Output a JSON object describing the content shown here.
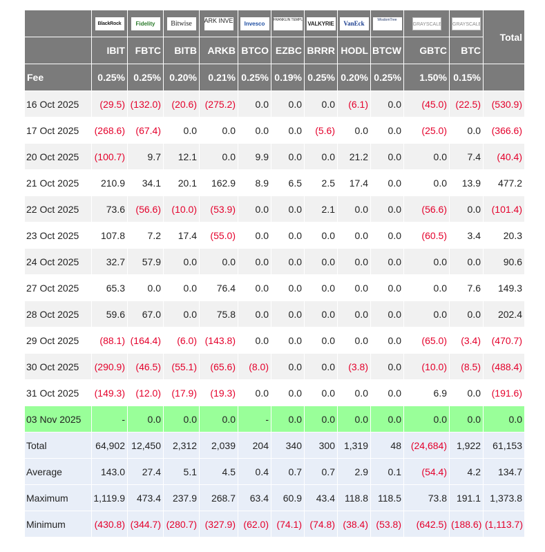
{
  "columns": [
    {
      "ticker": "IBIT",
      "fee": "0.25%",
      "logo_text": "BlackRock",
      "logo_icon": "blackrock-logo"
    },
    {
      "ticker": "FBTC",
      "fee": "0.25%",
      "logo_text": "Fidelity",
      "logo_icon": "fidelity-logo"
    },
    {
      "ticker": "BITB",
      "fee": "0.20%",
      "logo_text": "Bitwise",
      "logo_icon": "bitwise-logo"
    },
    {
      "ticker": "ARKB",
      "fee": "0.21%",
      "logo_text": "ARK INVEST",
      "logo_icon": "ark-logo"
    },
    {
      "ticker": "BTCO",
      "fee": "0.25%",
      "logo_text": "Invesco",
      "logo_icon": "invesco-logo"
    },
    {
      "ticker": "EZBC",
      "fee": "0.19%",
      "logo_text": "FRANKLIN TEMPLETON",
      "logo_icon": "franklin-templeton-logo"
    },
    {
      "ticker": "BRRR",
      "fee": "0.25%",
      "logo_text": "VALKYRIE",
      "logo_icon": "valkyrie-logo"
    },
    {
      "ticker": "HODL",
      "fee": "0.20%",
      "logo_text": "VanEck",
      "logo_icon": "vaneck-logo"
    },
    {
      "ticker": "BTCW",
      "fee": "0.25%",
      "logo_text": "WisdomTree",
      "logo_icon": "wisdomtree-logo"
    },
    {
      "ticker": "GBTC",
      "fee": "1.50%",
      "logo_text": "GRAYSCALE",
      "logo_icon": "grayscale-logo"
    },
    {
      "ticker": "BTC",
      "fee": "0.15%",
      "logo_text": "GRAYSCALE",
      "logo_icon": "grayscale-mini-logo"
    }
  ],
  "header": {
    "total_label": "Total",
    "fee_label": "Fee"
  },
  "rows": [
    {
      "date": "16 Oct 2025",
      "values": [
        "(29.5)",
        "(132.0)",
        "(20.6)",
        "(275.2)",
        "0.0",
        "0.0",
        "0.0",
        "(6.1)",
        "0.0",
        "(45.0)",
        "(22.5)"
      ],
      "total": "(530.9)"
    },
    {
      "date": "17 Oct 2025",
      "values": [
        "(268.6)",
        "(67.4)",
        "0.0",
        "0.0",
        "0.0",
        "0.0",
        "(5.6)",
        "0.0",
        "0.0",
        "(25.0)",
        "0.0"
      ],
      "total": "(366.6)"
    },
    {
      "date": "20 Oct 2025",
      "values": [
        "(100.7)",
        "9.7",
        "12.1",
        "0.0",
        "9.9",
        "0.0",
        "0.0",
        "21.2",
        "0.0",
        "0.0",
        "7.4"
      ],
      "total": "(40.4)"
    },
    {
      "date": "21 Oct 2025",
      "values": [
        "210.9",
        "34.1",
        "20.1",
        "162.9",
        "8.9",
        "6.5",
        "2.5",
        "17.4",
        "0.0",
        "0.0",
        "13.9"
      ],
      "total": "477.2"
    },
    {
      "date": "22 Oct 2025",
      "values": [
        "73.6",
        "(56.6)",
        "(10.0)",
        "(53.9)",
        "0.0",
        "0.0",
        "2.1",
        "0.0",
        "0.0",
        "(56.6)",
        "0.0"
      ],
      "total": "(101.4)"
    },
    {
      "date": "23 Oct 2025",
      "values": [
        "107.8",
        "7.2",
        "17.4",
        "(55.0)",
        "0.0",
        "0.0",
        "0.0",
        "0.0",
        "0.0",
        "(60.5)",
        "3.4"
      ],
      "total": "20.3"
    },
    {
      "date": "24 Oct 2025",
      "values": [
        "32.7",
        "57.9",
        "0.0",
        "0.0",
        "0.0",
        "0.0",
        "0.0",
        "0.0",
        "0.0",
        "0.0",
        "0.0"
      ],
      "total": "90.6"
    },
    {
      "date": "27 Oct 2025",
      "values": [
        "65.3",
        "0.0",
        "0.0",
        "76.4",
        "0.0",
        "0.0",
        "0.0",
        "0.0",
        "0.0",
        "0.0",
        "7.6"
      ],
      "total": "149.3"
    },
    {
      "date": "28 Oct 2025",
      "values": [
        "59.6",
        "67.0",
        "0.0",
        "75.8",
        "0.0",
        "0.0",
        "0.0",
        "0.0",
        "0.0",
        "0.0",
        "0.0"
      ],
      "total": "202.4"
    },
    {
      "date": "29 Oct 2025",
      "values": [
        "(88.1)",
        "(164.4)",
        "(6.0)",
        "(143.8)",
        "0.0",
        "0.0",
        "0.0",
        "0.0",
        "0.0",
        "(65.0)",
        "(3.4)"
      ],
      "total": "(470.7)"
    },
    {
      "date": "30 Oct 2025",
      "values": [
        "(290.9)",
        "(46.5)",
        "(55.1)",
        "(65.6)",
        "(8.0)",
        "0.0",
        "0.0",
        "(3.8)",
        "0.0",
        "(10.0)",
        "(8.5)"
      ],
      "total": "(488.4)"
    },
    {
      "date": "31 Oct 2025",
      "values": [
        "(149.3)",
        "(12.0)",
        "(17.9)",
        "(19.3)",
        "0.0",
        "0.0",
        "0.0",
        "0.0",
        "0.0",
        "6.9",
        "0.0"
      ],
      "total": "(191.6)"
    },
    {
      "date": "03 Nov 2025",
      "values": [
        "-",
        "0.0",
        "0.0",
        "0.0",
        "-",
        "0.0",
        "0.0",
        "0.0",
        "0.0",
        "0.0",
        "0.0"
      ],
      "total": "0.0",
      "highlight": true
    }
  ],
  "stats": [
    {
      "label": "Total",
      "values": [
        "64,902",
        "12,450",
        "2,312",
        "2,039",
        "204",
        "340",
        "300",
        "1,319",
        "48",
        "(24,684)",
        "1,922"
      ],
      "total": "61,153"
    },
    {
      "label": "Average",
      "values": [
        "143.0",
        "27.4",
        "5.1",
        "4.5",
        "0.4",
        "0.7",
        "0.7",
        "2.9",
        "0.1",
        "(54.4)",
        "4.2"
      ],
      "total": "134.7"
    },
    {
      "label": "Maximum",
      "values": [
        "1,119.9",
        "473.4",
        "237.9",
        "268.7",
        "63.4",
        "60.9",
        "43.4",
        "118.8",
        "118.5",
        "73.8",
        "191.1"
      ],
      "total": "1,373.8"
    },
    {
      "label": "Minimum",
      "values": [
        "(430.8)",
        "(344.7)",
        "(280.7)",
        "(327.9)",
        "(62.0)",
        "(74.1)",
        "(74.8)",
        "(38.4)",
        "(53.8)",
        "(642.5)",
        "(188.6)"
      ],
      "total": "(1,113.7)"
    }
  ],
  "colors": {
    "header_bg": "#7b7b7b",
    "negative": "#e4002b",
    "highlight_row": "#99ff99",
    "stat_bg": "#e8eef8",
    "zebra": "#f1f1f1"
  }
}
